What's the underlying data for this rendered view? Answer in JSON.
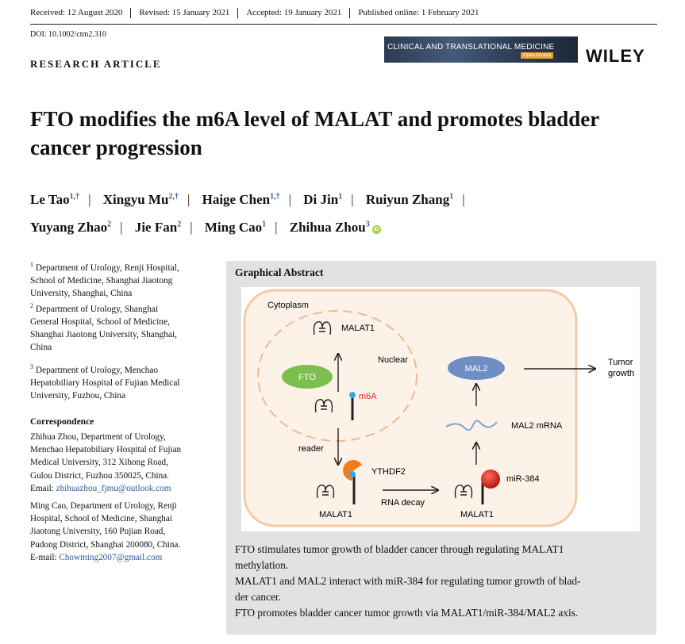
{
  "header": {
    "dates": [
      "Received: 12 August 2020",
      "Revised: 15 January 2021",
      "Accepted: 19 January 2021",
      "Published online: 1 February 2021"
    ],
    "doi": "DOI: 10.1002/ctm2.310",
    "article_type": "RESEARCH ARTICLE",
    "journal_banner": "CLINICAL AND TRANSLATIONAL MEDICINE",
    "open_access": "Open Access",
    "publisher": "WILEY"
  },
  "title": "FTO modifies the m6A level of MALAT and promotes bladder cancer progression",
  "authors": [
    {
      "name": "Le Tao",
      "sup": "1,†"
    },
    {
      "name": "Xingyu Mu",
      "sup": "2,†"
    },
    {
      "name": "Haige Chen",
      "sup": "1,†"
    },
    {
      "name": "Di Jin",
      "sup": "1"
    },
    {
      "name": "Ruiyun Zhang",
      "sup": "1"
    },
    {
      "name": "Yuyang Zhao",
      "sup": "2"
    },
    {
      "name": "Jie Fan",
      "sup": "2"
    },
    {
      "name": "Ming Cao",
      "sup": "1"
    },
    {
      "name": "Zhihua Zhou",
      "sup": "3"
    }
  ],
  "affiliations": [
    {
      "num": "1",
      "lines": [
        "Department of Urology, Renji Hospital,",
        "School of Medicine, Shanghai Jiaotong",
        "University, Shanghai, China"
      ]
    },
    {
      "num": "2",
      "lines": [
        "Department of Urology, Shanghai",
        "General Hospital, School of Medicine,",
        "Shanghai Jiaotong University, Shanghai,",
        "China"
      ]
    },
    {
      "num": "3",
      "lines": [
        "Department of Urology, Menchao",
        "Hepatobiliary Hospital of Fujian Medical",
        "University, Fuzhou, China"
      ]
    }
  ],
  "correspondence": {
    "heading": "Correspondence",
    "first": {
      "lines": [
        "Zhihua Zhou, Department of Urology,",
        "Menchao Hepatobiliary Hospital of Fujian",
        "Medical University, 312 Xihong Road,",
        "Gulou District, Fuzhou 350025, China."
      ],
      "email_label": "Email: ",
      "email": "zhihuazhou_fjmu@outlook.com"
    },
    "second": {
      "lines": [
        "Ming Cao, Department of Urology, Renji",
        "Hospital, School of Medicine, Shanghai",
        "Jiaotong University, 160 Pujian Road,",
        "Pudong District, Shanghai 200080, China."
      ],
      "email_label": "E-mail: ",
      "email": "Chowming2007@gmail.com"
    }
  },
  "graphical_abstract": {
    "heading": "Graphical Abstract",
    "figure": {
      "cytoplasm": "Cytoplasm",
      "nuclear": "Nuclear",
      "fto": "FTO",
      "malat1": "MALAT1",
      "m6a": "m6A",
      "reader": "reader",
      "ythdf2": "YTHDF2",
      "rna_decay": "RNA decay",
      "mir384": "miR-384",
      "mal2": "MAL2",
      "mal2_mrna": "MAL2 mRNA",
      "tumor": "Tumor",
      "growth": "growth"
    },
    "lines": [
      "FTO stimulates tumor growth of bladder cancer through regulating MALAT1",
      "methylation.",
      "MALAT1 and MAL2 interact with miR-384 for regulating tumor growth of blad-",
      "der cancer.",
      "FTO promotes bladder cancer tumor growth via MALAT1/miR-384/MAL2 axis."
    ]
  },
  "colors": {
    "link": "#2c5a9c",
    "fto_oval": "#7dbf4f",
    "mal2_oval": "#6f8fc4",
    "m6a_text": "#e0241b",
    "m6a_dot": "#3aa6e0",
    "ythdf2": "#f07c1e",
    "mir384": "#d8261f",
    "cell_border": "#f3c9a6",
    "cell_fill": "#fdf2e8"
  }
}
